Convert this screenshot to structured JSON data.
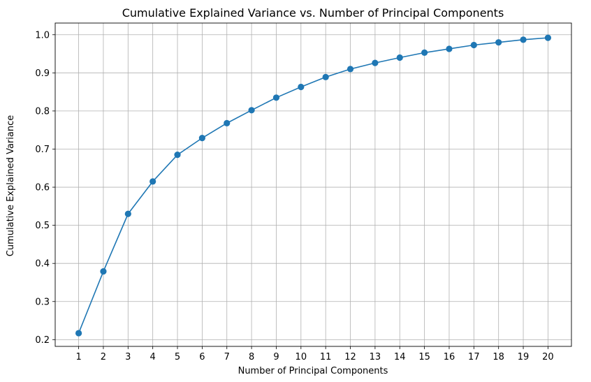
{
  "chart_data": {
    "type": "line",
    "title": "Cumulative Explained Variance vs. Number of Principal Components",
    "xlabel": "Number of Principal Components",
    "ylabel": "Cumulative Explained Variance",
    "x": [
      1,
      2,
      3,
      4,
      5,
      6,
      7,
      8,
      9,
      10,
      11,
      12,
      13,
      14,
      15,
      16,
      17,
      18,
      19,
      20
    ],
    "series": [
      {
        "values": [
          0.217,
          0.379,
          0.53,
          0.615,
          0.685,
          0.729,
          0.768,
          0.802,
          0.835,
          0.863,
          0.889,
          0.91,
          0.926,
          0.94,
          0.953,
          0.963,
          0.973,
          0.98,
          0.987,
          0.992
        ],
        "color": "#1f77b4",
        "marker": "circle"
      }
    ],
    "xticks": [
      "1",
      "2",
      "3",
      "4",
      "5",
      "6",
      "7",
      "8",
      "9",
      "10",
      "11",
      "12",
      "13",
      "14",
      "15",
      "16",
      "17",
      "18",
      "19",
      "20"
    ],
    "yticks": [
      0.2,
      0.3,
      0.4,
      0.5,
      0.6,
      0.7,
      0.8,
      0.9,
      1.0
    ],
    "ytick_labels": [
      "0.2",
      "0.3",
      "0.4",
      "0.5",
      "0.6",
      "0.7",
      "0.8",
      "0.9",
      "1.0"
    ],
    "xlim": [
      0.05,
      20.95
    ],
    "ylim": [
      0.1823,
      1.0307
    ],
    "grid": true,
    "grid_color": "#b0b0b0"
  }
}
